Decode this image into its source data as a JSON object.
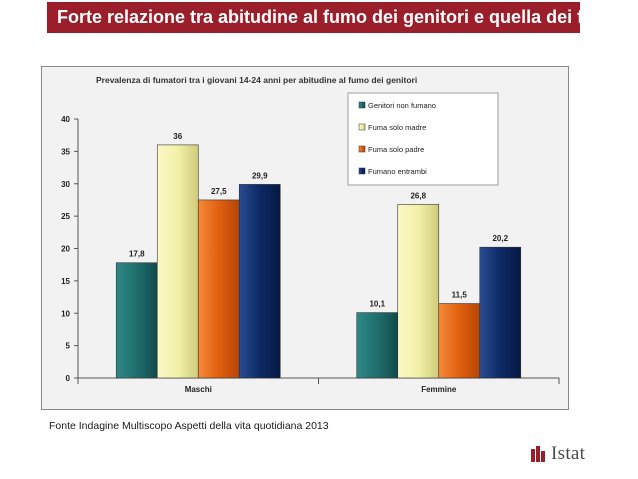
{
  "header": {
    "title": "Forte relazione tra abitudine al fumo dei genitori  e quella dei figli"
  },
  "chart_data": {
    "type": "bar",
    "title": "Prevalenza di fumatori tra i giovani 14-24 anni per abitudine  al fumo dei genitori",
    "xlabel": "",
    "ylabel": "",
    "categories": [
      "Maschi",
      "Femmine"
    ],
    "series": [
      {
        "name": "Genitori non fumano",
        "values": [
          17.8,
          10.1
        ],
        "labels": [
          "17,8",
          "10,1"
        ],
        "color": "#1f6e6e"
      },
      {
        "name": "Fuma solo madre",
        "values": [
          36,
          26.8
        ],
        "labels": [
          "36",
          "26,8"
        ],
        "color": "#f3f0a8"
      },
      {
        "name": "Fuma solo padre",
        "values": [
          27.5,
          11.5
        ],
        "labels": [
          "27,5",
          "11,5"
        ],
        "color": "#e0600f"
      },
      {
        "name": "Fumano entrambi",
        "values": [
          29.9,
          20.2
        ],
        "labels": [
          "29,9",
          "20,2"
        ],
        "color": "#0d2a66"
      }
    ],
    "ylim": [
      0,
      40
    ],
    "yticks": [
      0,
      5,
      10,
      15,
      20,
      25,
      30,
      35,
      40
    ],
    "grid": false,
    "legend": "top-right"
  },
  "footer": {
    "source": "Fonte Indagine Multiscopo Aspetti della vita quotidiana 2013",
    "logo_text": "Istat"
  },
  "colors": {
    "brand": "#9b1f2a"
  }
}
